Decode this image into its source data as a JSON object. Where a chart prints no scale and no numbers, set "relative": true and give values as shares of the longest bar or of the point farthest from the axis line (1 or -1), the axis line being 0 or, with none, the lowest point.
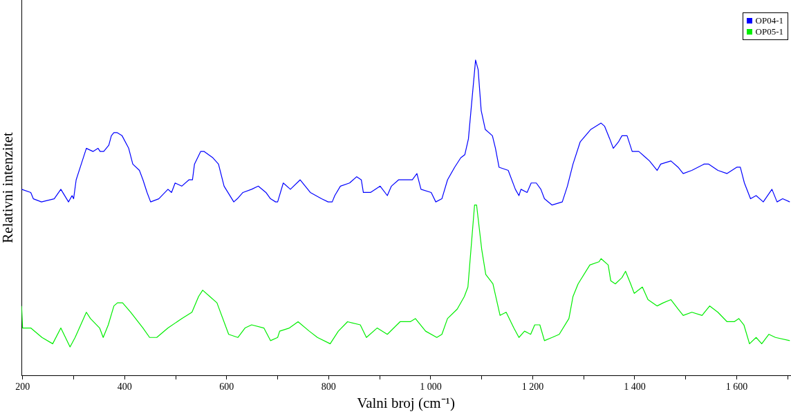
{
  "chart_data": {
    "type": "line",
    "xlabel": "Valni broj (cm⁻¹)",
    "ylabel": "Relativni intenzitet",
    "relative": true,
    "legend": "top right",
    "marker": "none",
    "line_style": "solid",
    "grid": false,
    "xlim": [
      198,
      1705
    ],
    "xticks": [
      200,
      {
        "value": 300,
        "label": null
      },
      400,
      {
        "value": 500,
        "label": null
      },
      600,
      {
        "value": 700,
        "label": null
      },
      800,
      {
        "value": 900,
        "label": null
      },
      {
        "value": 1000,
        "label": "1 000"
      },
      {
        "value": 1100,
        "label": null
      },
      {
        "value": 1200,
        "label": "1 200"
      },
      {
        "value": 1300,
        "label": null
      },
      {
        "value": 1400,
        "label": "1 400"
      },
      {
        "value": 1500,
        "label": null
      },
      {
        "value": 1600,
        "label": "1 600"
      },
      {
        "value": 1700,
        "label": null
      }
    ],
    "series": [
      {
        "name": "OP04-1",
        "color": "#0000ff",
        "x": [
          198,
          216,
          221,
          237,
          262,
          275,
          290,
          297,
          300,
          305,
          325,
          338,
          348,
          352,
          359,
          369,
          374,
          379,
          385,
          395,
          408,
          416,
          429,
          436,
          444,
          451,
          467,
          485,
          492,
          499,
          512,
          526,
          533,
          537,
          549,
          556,
          573,
          584,
          595,
          614,
          621,
          632,
          649,
          662,
          677,
          686,
          696,
          700,
          711,
          725,
          744,
          764,
          786,
          799,
          807,
          812,
          823,
          841,
          855,
          864,
          868,
          882,
          901,
          915,
          923,
          937,
          951,
          964,
          973,
          981,
          1001,
          1010,
          1022,
          1033,
          1047,
          1059,
          1067,
          1074,
          1079,
          1088,
          1093,
          1099,
          1107,
          1121,
          1127,
          1134,
          1152,
          1166,
          1173,
          1177,
          1189,
          1197,
          1207,
          1216,
          1223,
          1238,
          1258,
          1268,
          1279,
          1293,
          1314,
          1334,
          1341,
          1351,
          1358,
          1368,
          1375,
          1385,
          1395,
          1408,
          1422,
          1429,
          1444,
          1451,
          1471,
          1485,
          1495,
          1512,
          1536,
          1545,
          1563,
          1581,
          1600,
          1607,
          1615,
          1627,
          1638,
          1652,
          1669,
          1679,
          1690,
          1704
        ],
        "values": [
          0.59,
          0.58,
          0.56,
          0.55,
          0.56,
          0.59,
          0.55,
          0.57,
          0.56,
          0.62,
          0.72,
          0.71,
          0.72,
          0.71,
          0.71,
          0.73,
          0.76,
          0.77,
          0.77,
          0.76,
          0.72,
          0.67,
          0.65,
          0.62,
          0.58,
          0.55,
          0.56,
          0.59,
          0.58,
          0.61,
          0.6,
          0.62,
          0.62,
          0.67,
          0.71,
          0.71,
          0.69,
          0.67,
          0.6,
          0.55,
          0.56,
          0.58,
          0.59,
          0.6,
          0.58,
          0.56,
          0.55,
          0.55,
          0.61,
          0.59,
          0.62,
          0.58,
          0.56,
          0.55,
          0.55,
          0.57,
          0.6,
          0.61,
          0.63,
          0.62,
          0.58,
          0.58,
          0.6,
          0.57,
          0.6,
          0.62,
          0.62,
          0.62,
          0.64,
          0.59,
          0.58,
          0.55,
          0.56,
          0.62,
          0.66,
          0.69,
          0.7,
          0.75,
          0.84,
          1,
          0.97,
          0.84,
          0.78,
          0.76,
          0.72,
          0.66,
          0.65,
          0.59,
          0.57,
          0.59,
          0.58,
          0.61,
          0.61,
          0.59,
          0.56,
          0.54,
          0.55,
          0.6,
          0.67,
          0.74,
          0.78,
          0.8,
          0.79,
          0.75,
          0.72,
          0.74,
          0.76,
          0.76,
          0.71,
          0.71,
          0.69,
          0.68,
          0.65,
          0.67,
          0.68,
          0.66,
          0.64,
          0.65,
          0.67,
          0.67,
          0.65,
          0.64,
          0.66,
          0.66,
          0.61,
          0.56,
          0.57,
          0.55,
          0.59,
          0.55,
          0.56,
          0.55
        ]
      },
      {
        "name": "OP05-1",
        "color": "#00ee00",
        "x": [
          198,
          200,
          207,
          216,
          238,
          259,
          275,
          293,
          303,
          325,
          333,
          351,
          358,
          368,
          379,
          386,
          396,
          412,
          436,
          449,
          463,
          485,
          512,
          532,
          545,
          553,
          567,
          581,
          604,
          622,
          636,
          649,
          673,
          686,
          700,
          704,
          723,
          740,
          762,
          778,
          803,
          819,
          837,
          862,
          874,
          895,
          915,
          940,
          960,
          970,
          990,
          1012,
          1022,
          1033,
          1052,
          1066,
          1073,
          1079,
          1086,
          1090,
          1100,
          1108,
          1122,
          1136,
          1148,
          1163,
          1173,
          1184,
          1196,
          1204,
          1214,
          1223,
          1238,
          1252,
          1271,
          1279,
          1289,
          1312,
          1330,
          1334,
          1348,
          1353,
          1362,
          1375,
          1382,
          1392,
          1399,
          1415,
          1426,
          1444,
          1456,
          1471,
          1485,
          1495,
          1512,
          1532,
          1547,
          1563,
          1581,
          1595,
          1604,
          1614,
          1625,
          1638,
          1649,
          1663,
          1676,
          1704
        ],
        "values": [
          0.22,
          0.15,
          0.15,
          0.15,
          0.12,
          0.1,
          0.15,
          0.09,
          0.12,
          0.2,
          0.18,
          0.15,
          0.12,
          0.16,
          0.22,
          0.23,
          0.23,
          0.2,
          0.15,
          0.12,
          0.12,
          0.15,
          0.18,
          0.2,
          0.25,
          0.27,
          0.25,
          0.23,
          0.13,
          0.12,
          0.15,
          0.16,
          0.15,
          0.11,
          0.12,
          0.14,
          0.15,
          0.17,
          0.14,
          0.12,
          0.1,
          0.14,
          0.17,
          0.16,
          0.12,
          0.15,
          0.13,
          0.17,
          0.17,
          0.18,
          0.14,
          0.12,
          0.13,
          0.18,
          0.21,
          0.25,
          0.28,
          0.4,
          0.54,
          0.54,
          0.4,
          0.32,
          0.29,
          0.19,
          0.2,
          0.15,
          0.12,
          0.14,
          0.13,
          0.16,
          0.16,
          0.11,
          0.12,
          0.13,
          0.18,
          0.25,
          0.29,
          0.35,
          0.36,
          0.37,
          0.35,
          0.3,
          0.29,
          0.31,
          0.33,
          0.29,
          0.26,
          0.28,
          0.24,
          0.22,
          0.23,
          0.24,
          0.21,
          0.19,
          0.2,
          0.19,
          0.22,
          0.2,
          0.17,
          0.17,
          0.18,
          0.16,
          0.1,
          0.12,
          0.1,
          0.13,
          0.12,
          0.11
        ]
      }
    ]
  }
}
